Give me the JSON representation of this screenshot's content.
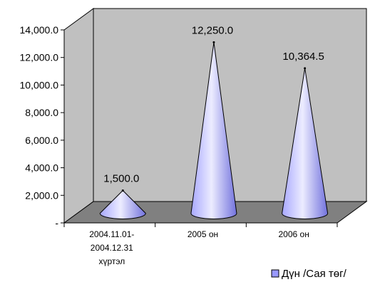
{
  "chart_data": {
    "type": "bar",
    "style": "3d-cone",
    "categories": [
      [
        "2004.11.01-",
        "2004.12.31",
        "хүртэл"
      ],
      [
        "2005 он"
      ],
      [
        "2006 он"
      ]
    ],
    "series": [
      {
        "name": "Дүн /Сая төг/",
        "values": [
          1500,
          12250,
          10364.5
        ],
        "color": "#9999ff"
      }
    ],
    "data_labels": [
      "1,500.0",
      "12,250.0",
      "10,364.5"
    ],
    "yticks": [
      {
        "value": 0,
        "label": "-"
      },
      {
        "value": 2000,
        "label": "2,000.0"
      },
      {
        "value": 4000,
        "label": "4,000.0"
      },
      {
        "value": 6000,
        "label": "6,000.0"
      },
      {
        "value": 8000,
        "label": "8,000.0"
      },
      {
        "value": 10000,
        "label": "10,000.0"
      },
      {
        "value": 12000,
        "label": "12,000.0"
      },
      {
        "value": 14000,
        "label": "14,000.0"
      }
    ],
    "ylim": [
      0,
      14000
    ],
    "grid": false,
    "legend": "bottom-right",
    "wall_color": "#c0c0c0",
    "floor_color": "#808080"
  }
}
